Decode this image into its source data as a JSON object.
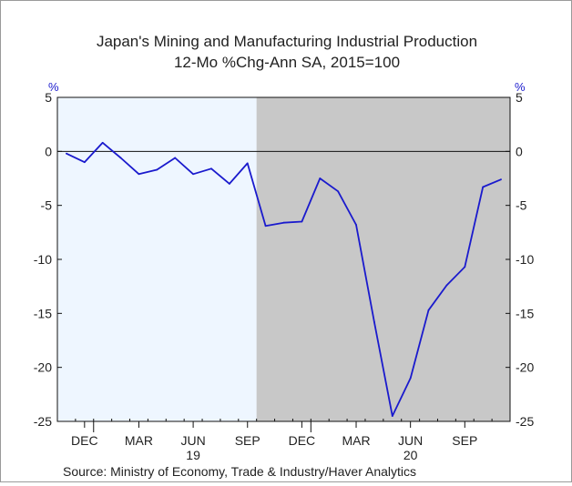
{
  "chart_data": {
    "type": "line",
    "title": "Japan's Mining and Manufacturing Industrial Production",
    "subtitle": "12-Mo %Chg-Ann   SA, 2015=100",
    "ylabel_left": "%",
    "ylabel_right": "%",
    "ylim": [
      -25,
      5
    ],
    "yticks": [
      5,
      0,
      -5,
      -10,
      -15,
      -20,
      -25
    ],
    "x_tick_labels": [
      "DEC",
      "MAR",
      "JUN",
      "SEP",
      "DEC",
      "MAR",
      "JUN",
      "SEP"
    ],
    "x_year_labels": [
      "19",
      "20"
    ],
    "x": [
      "2018-11",
      "2018-12",
      "2019-01",
      "2019-02",
      "2019-03",
      "2019-04",
      "2019-05",
      "2019-06",
      "2019-07",
      "2019-08",
      "2019-09",
      "2019-10",
      "2019-11",
      "2019-12",
      "2020-01",
      "2020-02",
      "2020-03",
      "2020-04",
      "2020-05",
      "2020-06",
      "2020-07",
      "2020-08",
      "2020-09",
      "2020-10",
      "2020-11"
    ],
    "series": [
      {
        "values": [
          -0.2,
          -1.0,
          0.8,
          -0.6,
          -2.1,
          -1.7,
          -0.6,
          -2.1,
          -1.6,
          -3.0,
          -1.1,
          -6.9,
          -6.6,
          -6.5,
          -2.5,
          -3.7,
          -6.8,
          -15.8,
          -24.5,
          -21.0,
          -14.7,
          -12.4,
          -10.7,
          -3.3,
          -2.6
        ]
      }
    ],
    "shaded_region": {
      "from": "2019-10",
      "to": "2020-11"
    },
    "reference_line": 0,
    "source": "Source:  Ministry of Economy, Trade & Industry/Haver Analytics",
    "colors": {
      "line": "#1a1acd",
      "background_left": "#eef6ff",
      "shaded": "#c8c8c8",
      "axis_text": "#222222",
      "percent_label": "#1a1acd"
    }
  }
}
